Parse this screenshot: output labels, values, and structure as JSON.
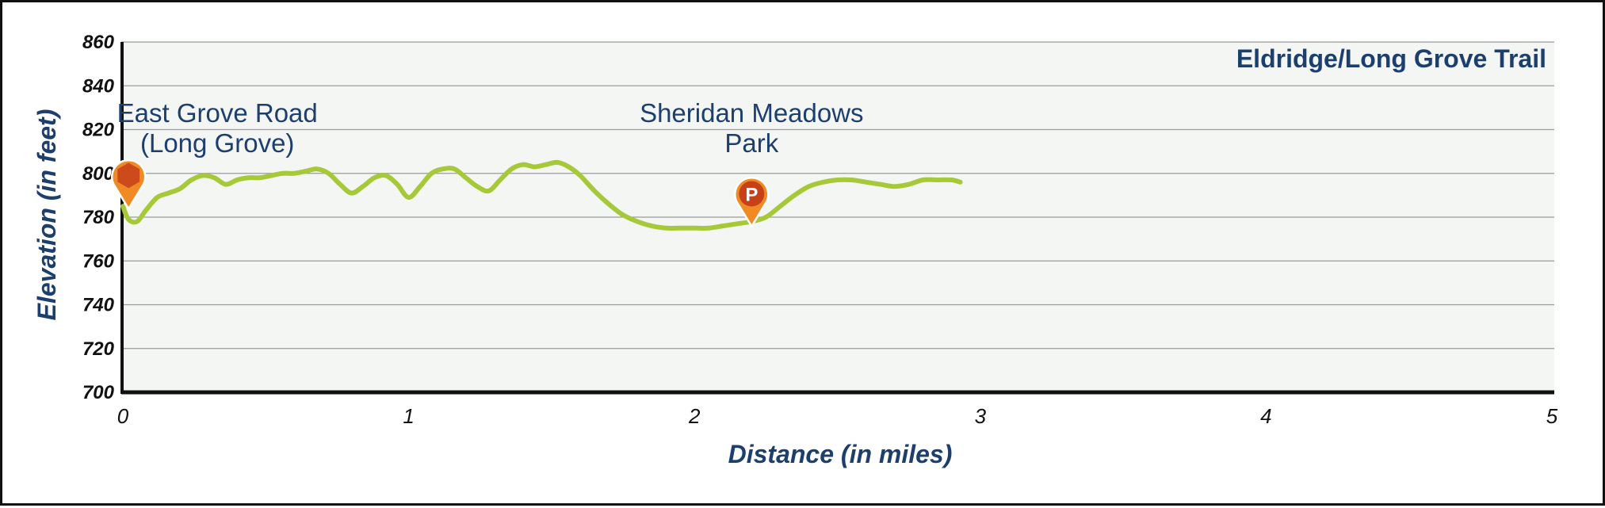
{
  "chart_data": {
    "type": "line",
    "title": "Eldridge/Long Grove Trail",
    "xlabel": "Distance (in miles)",
    "ylabel": "Elevation (in feet)",
    "xlim": [
      0,
      5
    ],
    "ylim": [
      700,
      860
    ],
    "x_ticks": [
      "0",
      "1",
      "2",
      "3",
      "4",
      "5"
    ],
    "y_ticks": [
      "700",
      "720",
      "740",
      "760",
      "780",
      "800",
      "820",
      "840",
      "860"
    ],
    "grid": true,
    "colors": {
      "line": "#a6c93a",
      "plot_background": "#f4f6f4",
      "grid": "#9a9a9a",
      "text": "#1d3f6e",
      "marker_trailhead": "#cc4a1c",
      "marker_parking": "#f08a24"
    },
    "series": [
      {
        "x": [
          0.0,
          0.02,
          0.05,
          0.08,
          0.12,
          0.16,
          0.2,
          0.24,
          0.28,
          0.32,
          0.36,
          0.4,
          0.44,
          0.48,
          0.52,
          0.56,
          0.6,
          0.64,
          0.68,
          0.72,
          0.76,
          0.8,
          0.84,
          0.88,
          0.92,
          0.96,
          1.0,
          1.04,
          1.08,
          1.12,
          1.16,
          1.2,
          1.24,
          1.28,
          1.32,
          1.36,
          1.4,
          1.44,
          1.48,
          1.52,
          1.56,
          1.6,
          1.65,
          1.7,
          1.75,
          1.8,
          1.85,
          1.9,
          1.95,
          2.0,
          2.05,
          2.1,
          2.15,
          2.2,
          2.25,
          2.3,
          2.35,
          2.4,
          2.45,
          2.5,
          2.55,
          2.6,
          2.65,
          2.7,
          2.75,
          2.8,
          2.85,
          2.9,
          2.93
        ],
        "values": [
          785,
          779,
          778,
          783,
          789,
          791,
          793,
          797,
          799,
          798,
          795,
          797,
          798,
          798,
          799,
          800,
          800,
          801,
          802,
          800,
          795,
          791,
          794,
          798,
          799,
          795,
          789,
          794,
          800,
          802,
          802,
          798,
          794,
          792,
          797,
          802,
          804,
          803,
          804,
          805,
          803,
          799,
          792,
          786,
          781,
          778,
          776,
          775,
          775,
          775,
          775,
          776,
          777,
          778,
          780,
          785,
          790,
          794,
          796,
          797,
          797,
          796,
          795,
          794,
          795,
          797,
          797,
          797,
          796
        ]
      }
    ],
    "annotations": [
      {
        "label_lines": [
          "East Grove Road",
          "(Long Grove)"
        ],
        "x": 0.02,
        "y": 786,
        "marker": "hexagon-pin-icon"
      },
      {
        "label_lines": [
          "Sheridan Meadows",
          "Park"
        ],
        "x": 2.2,
        "y": 778,
        "marker": "parking-pin-icon",
        "marker_text": "P"
      }
    ]
  }
}
